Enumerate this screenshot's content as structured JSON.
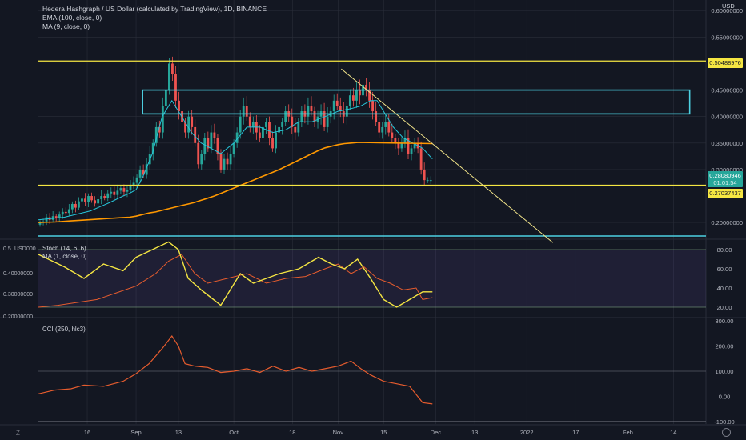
{
  "header": {
    "title": "Hedera Hashgraph / US Dollar (calculated by TradingView), 1D, BINANCE",
    "ema_label": "EMA (100, close, 0)",
    "ma_label": "MA (9, close, 0)",
    "currency": "USD"
  },
  "price_tags": {
    "resistance": "0.50488976",
    "current_top": "0.28080946",
    "current_mid": "01:01:54",
    "support": "0.27037437"
  },
  "bottom_icons": {
    "left": "Z",
    "right": "globe"
  },
  "colors": {
    "background": "#131722",
    "up_candle": "#26a69a",
    "down_candle": "#ef5350",
    "ema": "#ff9800",
    "ma": "#26c6da",
    "level_line": "#f5e642",
    "box": "#4dd0e1",
    "stoch_k": "#f5e642",
    "stoch_d": "#e65c2e",
    "cci": "#e65c2e",
    "grid": "#2a2e39"
  },
  "chart_data": [
    {
      "type": "candlestick",
      "title": "Hedera Hashgraph / US Dollar (calculated by TradingView), 1D, BINANCE",
      "ylabel": "USD",
      "ylim": [
        0.17,
        0.62
      ],
      "y_ticks": [
        "0.60000000",
        "0.55000000",
        "0.45000000",
        "0.40000000",
        "0.35000000",
        "0.30000000",
        "0.20000000"
      ],
      "x_ticks": [
        "16",
        "Sep",
        "13",
        "Oct",
        "18",
        "Nov",
        "15",
        "Dec",
        "13",
        "2022",
        "17",
        "Feb",
        "14"
      ],
      "x_range_days": [
        0,
        205
      ],
      "x_tick_days": [
        15,
        30,
        43,
        60,
        78,
        92,
        106,
        122,
        134,
        150,
        165,
        181,
        195
      ],
      "candle_days": [
        0,
        121
      ],
      "closes": [
        0.2,
        0.202,
        0.21,
        0.205,
        0.212,
        0.208,
        0.215,
        0.22,
        0.218,
        0.225,
        0.235,
        0.228,
        0.24,
        0.245,
        0.238,
        0.25,
        0.242,
        0.236,
        0.244,
        0.25,
        0.247,
        0.255,
        0.258,
        0.252,
        0.26,
        0.265,
        0.258,
        0.262,
        0.27,
        0.275,
        0.285,
        0.3,
        0.29,
        0.31,
        0.33,
        0.35,
        0.38,
        0.37,
        0.42,
        0.45,
        0.5,
        0.48,
        0.43,
        0.41,
        0.39,
        0.37,
        0.4,
        0.38,
        0.35,
        0.31,
        0.33,
        0.36,
        0.34,
        0.37,
        0.36,
        0.33,
        0.3,
        0.32,
        0.31,
        0.33,
        0.35,
        0.37,
        0.4,
        0.42,
        0.4,
        0.38,
        0.39,
        0.37,
        0.36,
        0.38,
        0.39,
        0.36,
        0.34,
        0.37,
        0.38,
        0.39,
        0.41,
        0.4,
        0.38,
        0.37,
        0.39,
        0.41,
        0.4,
        0.42,
        0.41,
        0.39,
        0.4,
        0.41,
        0.38,
        0.4,
        0.41,
        0.43,
        0.42,
        0.41,
        0.4,
        0.42,
        0.44,
        0.43,
        0.45,
        0.44,
        0.46,
        0.45,
        0.43,
        0.41,
        0.39,
        0.37,
        0.38,
        0.39,
        0.37,
        0.36,
        0.35,
        0.34,
        0.35,
        0.36,
        0.33,
        0.34,
        0.35,
        0.34,
        0.3,
        0.28,
        0.28,
        0.28
      ],
      "ema_100": [
        0.2,
        0.201,
        0.203,
        0.205,
        0.207,
        0.209,
        0.21,
        0.212,
        0.215,
        0.218,
        0.22,
        0.223,
        0.226,
        0.229,
        0.232,
        0.235,
        0.238,
        0.242,
        0.246,
        0.25,
        0.255,
        0.26,
        0.265,
        0.27,
        0.275,
        0.28,
        0.285,
        0.29,
        0.295,
        0.3,
        0.306,
        0.312,
        0.318,
        0.324,
        0.33,
        0.336,
        0.341,
        0.344,
        0.347,
        0.349,
        0.35,
        0.351,
        0.351,
        0.35,
        0.349
      ],
      "ema_100_days": [
        0,
        5,
        10,
        15,
        20,
        25,
        28,
        30,
        32,
        34,
        36,
        38,
        40,
        42,
        44,
        46,
        48,
        50,
        52,
        54,
        56,
        58,
        60,
        62,
        64,
        66,
        68,
        70,
        72,
        74,
        76,
        78,
        80,
        82,
        84,
        86,
        88,
        90,
        92,
        94,
        96,
        98,
        100,
        110,
        121
      ],
      "ma_9": [
        0.205,
        0.21,
        0.222,
        0.238,
        0.25,
        0.255,
        0.262,
        0.285,
        0.33,
        0.4,
        0.43,
        0.4,
        0.37,
        0.35,
        0.34,
        0.33,
        0.35,
        0.38,
        0.38,
        0.37,
        0.375,
        0.39,
        0.39,
        0.4,
        0.41,
        0.415,
        0.42,
        0.43,
        0.43,
        0.41,
        0.38,
        0.36,
        0.35,
        0.34,
        0.32
      ],
      "ma_9_days": [
        0,
        8,
        16,
        22,
        26,
        28,
        30,
        32,
        35,
        38,
        41,
        44,
        47,
        50,
        53,
        56,
        60,
        64,
        68,
        72,
        76,
        80,
        84,
        88,
        92,
        96,
        99,
        102,
        104,
        106,
        109,
        112,
        115,
        118,
        121
      ],
      "annotations": {
        "resistance_line": 0.50488976,
        "support_line": 0.27037437,
        "box": {
          "from_day": 32,
          "to_day": 200,
          "low": 0.405,
          "high": 0.45
        },
        "trendline": {
          "from_day": 93,
          "from_price": 0.49,
          "to_day": 158,
          "to_price": 0.162
        }
      }
    },
    {
      "type": "line",
      "title": "Stoch (14, 6, 6)",
      "series": [
        {
          "name": "Stoch (14, 6, 6)",
          "days": [
            0,
            8,
            14,
            20,
            26,
            30,
            35,
            40,
            43,
            46,
            50,
            56,
            62,
            66,
            70,
            74,
            80,
            86,
            90,
            94,
            98,
            102,
            106,
            110,
            114,
            118,
            121
          ],
          "values": [
            75,
            62,
            50,
            65,
            58,
            72,
            80,
            88,
            80,
            50,
            38,
            22,
            55,
            45,
            50,
            55,
            60,
            72,
            65,
            60,
            70,
            50,
            28,
            20,
            28,
            36,
            36
          ]
        },
        {
          "name": "MA (1, close, 0)",
          "days": [
            0,
            6,
            12,
            18,
            24,
            30,
            36,
            40,
            44,
            48,
            52,
            58,
            64,
            70,
            76,
            82,
            88,
            92,
            96,
            100,
            104,
            108,
            112,
            116,
            118,
            121
          ],
          "values": [
            20,
            22,
            25,
            28,
            35,
            42,
            55,
            68,
            75,
            55,
            45,
            50,
            55,
            45,
            50,
            52,
            60,
            65,
            55,
            62,
            50,
            45,
            38,
            40,
            28,
            30
          ]
        }
      ],
      "y_ticks": [
        "80.00",
        "60.00",
        "40.00",
        "20.00"
      ],
      "bands": [
        80,
        20
      ],
      "ylim": [
        10,
        90
      ]
    },
    {
      "type": "line",
      "title": "CCI (250, hlc3)",
      "series": [
        {
          "name": "CCI (250, hlc3)",
          "days": [
            0,
            5,
            10,
            14,
            20,
            26,
            30,
            34,
            38,
            41,
            43,
            45,
            48,
            52,
            56,
            60,
            64,
            68,
            72,
            76,
            80,
            84,
            88,
            92,
            96,
            99,
            102,
            106,
            110,
            114,
            118,
            121
          ],
          "values": [
            10,
            25,
            30,
            45,
            40,
            60,
            90,
            130,
            190,
            240,
            200,
            130,
            120,
            115,
            95,
            100,
            110,
            95,
            120,
            100,
            115,
            100,
            110,
            120,
            140,
            110,
            85,
            60,
            50,
            40,
            -25,
            -30
          ]
        }
      ],
      "y_ticks": [
        "300.00",
        "200.00",
        "100.00",
        "0.00",
        "-100.00"
      ],
      "bands": [
        100,
        -100
      ],
      "ylim": [
        -110,
        310
      ]
    }
  ],
  "overlay_axis": {
    "labels": [
      "0.5",
      "USD",
      "0.40000000",
      "0.30000000",
      "0.20000000"
    ],
    "text_00": "000"
  }
}
